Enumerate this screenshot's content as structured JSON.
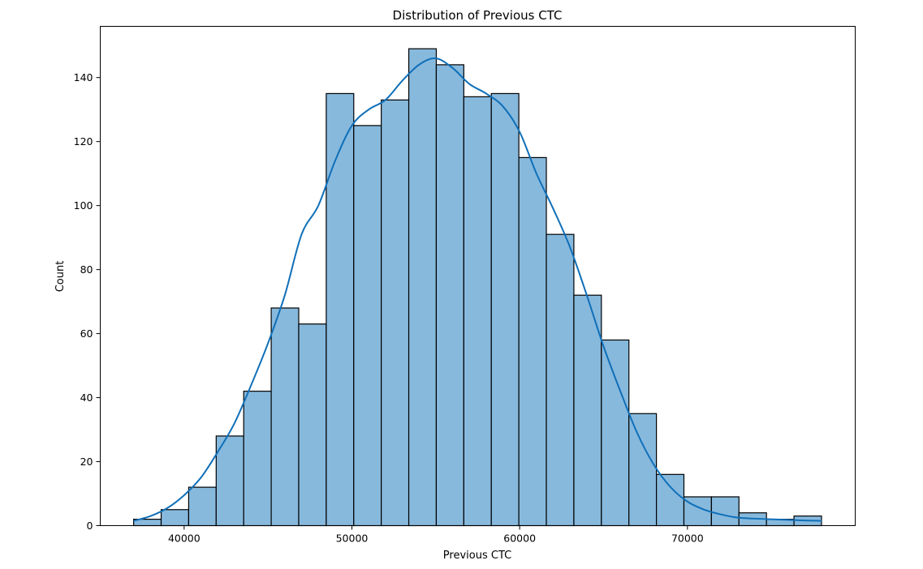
{
  "chart_data": {
    "type": "bar",
    "title": "Distribution of Previous CTC",
    "xlabel": "Previous CTC",
    "ylabel": "Count",
    "bin_start": 36990,
    "bin_width": 1640,
    "counts": [
      2,
      5,
      12,
      28,
      42,
      68,
      63,
      135,
      125,
      133,
      149,
      144,
      134,
      135,
      115,
      91,
      72,
      58,
      35,
      16,
      9,
      9,
      4,
      2,
      3
    ],
    "xlim": [
      35000,
      80000
    ],
    "ylim": [
      0,
      156
    ],
    "xticks": [
      40000,
      50000,
      60000,
      70000
    ],
    "yticks": [
      0,
      20,
      40,
      60,
      80,
      100,
      120,
      140
    ],
    "kde": {
      "x": [
        36990,
        38000,
        39000,
        40000,
        41000,
        42000,
        43000,
        44000,
        45000,
        46000,
        47000,
        48000,
        49000,
        50000,
        51000,
        52000,
        53000,
        54000,
        55000,
        56000,
        57000,
        58000,
        59000,
        60000,
        61000,
        62000,
        63000,
        64000,
        65000,
        66000,
        67000,
        68000,
        69000,
        70000,
        71000,
        72000,
        73000,
        74000,
        75000,
        76000,
        77000,
        78000
      ],
      "y": [
        1.5,
        3,
        5.5,
        9.5,
        15,
        23,
        32,
        44,
        57,
        72,
        91,
        100,
        114,
        125,
        130,
        133,
        139,
        144,
        146,
        143,
        138,
        135,
        131,
        123,
        110,
        99,
        87,
        72,
        56,
        42,
        29,
        19,
        12,
        7.5,
        5,
        3.5,
        2.5,
        2.2,
        2,
        1.8,
        1.6,
        1.5
      ]
    },
    "grid": false,
    "colors": {
      "bar_fill": "#87b9dd",
      "bar_edge": "#000000",
      "kde_line": "#0f6fb8"
    }
  }
}
